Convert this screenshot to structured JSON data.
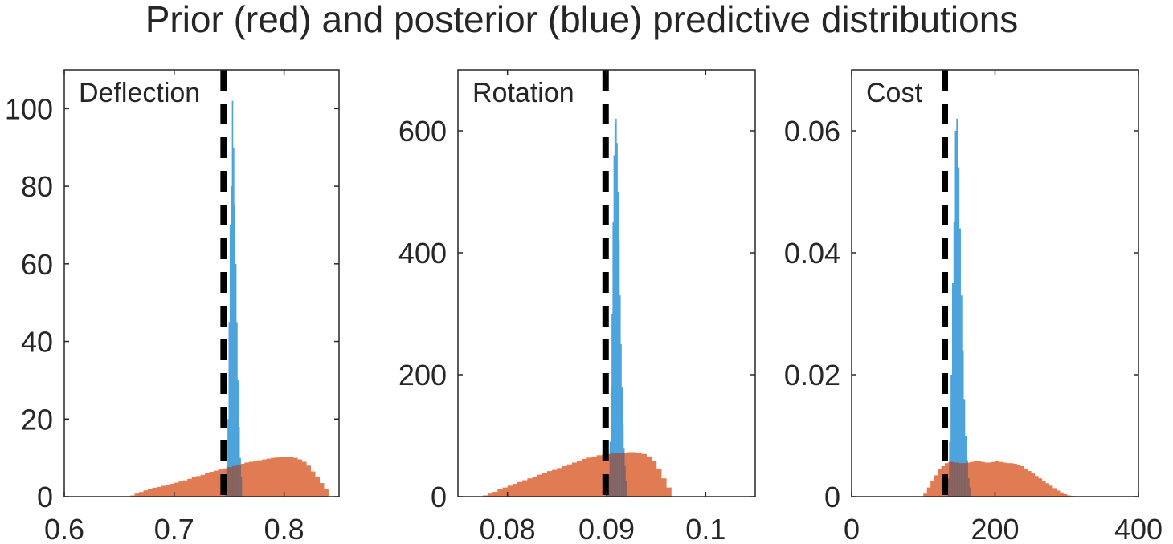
{
  "title": "Prior (red) and posterior (blue) predictive distributions",
  "colors": {
    "prior": "#e07b54",
    "posterior": "#4da3db",
    "overlap": "#8c5f58",
    "reference_line": "#000000",
    "axes": "#262626"
  },
  "chart_data": [
    {
      "type": "bar",
      "panel_label": "Deflection",
      "xlim": [
        0.6,
        0.85
      ],
      "ylim": [
        0,
        110
      ],
      "xticks": [
        0.6,
        0.7,
        0.8
      ],
      "xtick_labels": [
        "0.6",
        "0.7",
        "0.8"
      ],
      "yticks": [
        0,
        20,
        40,
        60,
        80,
        100
      ],
      "ytick_labels": [
        "0",
        "20",
        "40",
        "60",
        "80",
        "100"
      ],
      "reference_x": 0.745,
      "series": [
        {
          "name": "Prior (red)",
          "bin_start": 0.66,
          "bin_width": 0.004,
          "values": [
            0.3,
            0.8,
            1.2,
            1.6,
            2,
            2.3,
            2.5,
            2.8,
            3,
            3.3,
            3.6,
            3.9,
            4.2,
            4.6,
            5,
            5.3,
            5.6,
            6,
            6.4,
            6.7,
            7,
            7.3,
            7.6,
            7.9,
            8.2,
            8.5,
            8.8,
            9,
            9.2,
            9.4,
            9.6,
            9.8,
            10,
            10.1,
            10.2,
            10.3,
            10.2,
            10,
            9.6,
            9,
            8,
            6.5,
            5,
            3.5,
            2
          ]
        },
        {
          "name": "Posterior (blue)",
          "bin_start": 0.7465,
          "bin_width": 0.001,
          "values": [
            3,
            8,
            20,
            45,
            70,
            80,
            102,
            90,
            75,
            60,
            45,
            30,
            18,
            10,
            5
          ]
        }
      ]
    },
    {
      "type": "bar",
      "panel_label": "Rotation",
      "xlim": [
        0.075,
        0.105
      ],
      "ylim": [
        0,
        700
      ],
      "xticks": [
        0.08,
        0.09,
        0.1
      ],
      "xtick_labels": [
        "0.08",
        "0.09",
        "0.1"
      ],
      "yticks": [
        0,
        200,
        400,
        600
      ],
      "ytick_labels": [
        "0",
        "200",
        "400",
        "600"
      ],
      "reference_x": 0.0899,
      "series": [
        {
          "name": "Prior (red)",
          "bin_start": 0.0775,
          "bin_width": 0.0005,
          "values": [
            2,
            5,
            8,
            12,
            15,
            18,
            21,
            24,
            27,
            30,
            33,
            36,
            39,
            42,
            44,
            47,
            50,
            53,
            56,
            59,
            62,
            64,
            66,
            68,
            69,
            70,
            71,
            72,
            72,
            73,
            73,
            72,
            70,
            66,
            58,
            45,
            30,
            15
          ]
        },
        {
          "name": "Posterior (blue)",
          "bin_start": 0.09,
          "bin_width": 0.0001,
          "values": [
            5,
            15,
            35,
            90,
            180,
            300,
            450,
            560,
            610,
            620,
            580,
            500,
            420,
            330,
            250,
            180,
            120,
            80,
            50,
            25
          ]
        }
      ]
    },
    {
      "type": "bar",
      "panel_label": "Cost",
      "xlim": [
        0,
        400
      ],
      "ylim": [
        0,
        0.07
      ],
      "xticks": [
        0,
        200,
        400
      ],
      "xtick_labels": [
        "0",
        "200",
        "400"
      ],
      "yticks": [
        0,
        0.02,
        0.04,
        0.06
      ],
      "ytick_labels": [
        "0",
        "0.02",
        "0.04",
        "0.06"
      ],
      "reference_x": 130,
      "series": [
        {
          "name": "Prior (red)",
          "bin_start": 100,
          "bin_width": 5,
          "values": [
            0.0005,
            0.0015,
            0.0025,
            0.0035,
            0.0045,
            0.005,
            0.0055,
            0.0057,
            0.0057,
            0.0056,
            0.0055,
            0.0055,
            0.0056,
            0.0057,
            0.0058,
            0.0058,
            0.0057,
            0.0056,
            0.0056,
            0.0057,
            0.0058,
            0.0057,
            0.0056,
            0.0055,
            0.0055,
            0.0054,
            0.0052,
            0.005,
            0.0046,
            0.0042,
            0.0038,
            0.0034,
            0.003,
            0.0026,
            0.0022,
            0.0018,
            0.0014,
            0.001,
            0.0007,
            0.0004,
            0.0002,
            0.0001
          ]
        },
        {
          "name": "Posterior (blue)",
          "bin_start": 134,
          "bin_width": 2,
          "values": [
            0.003,
            0.009,
            0.02,
            0.035,
            0.045,
            0.06,
            0.062,
            0.054,
            0.044,
            0.033,
            0.024,
            0.016,
            0.01,
            0.006,
            0.003,
            0.0015
          ]
        }
      ]
    }
  ]
}
